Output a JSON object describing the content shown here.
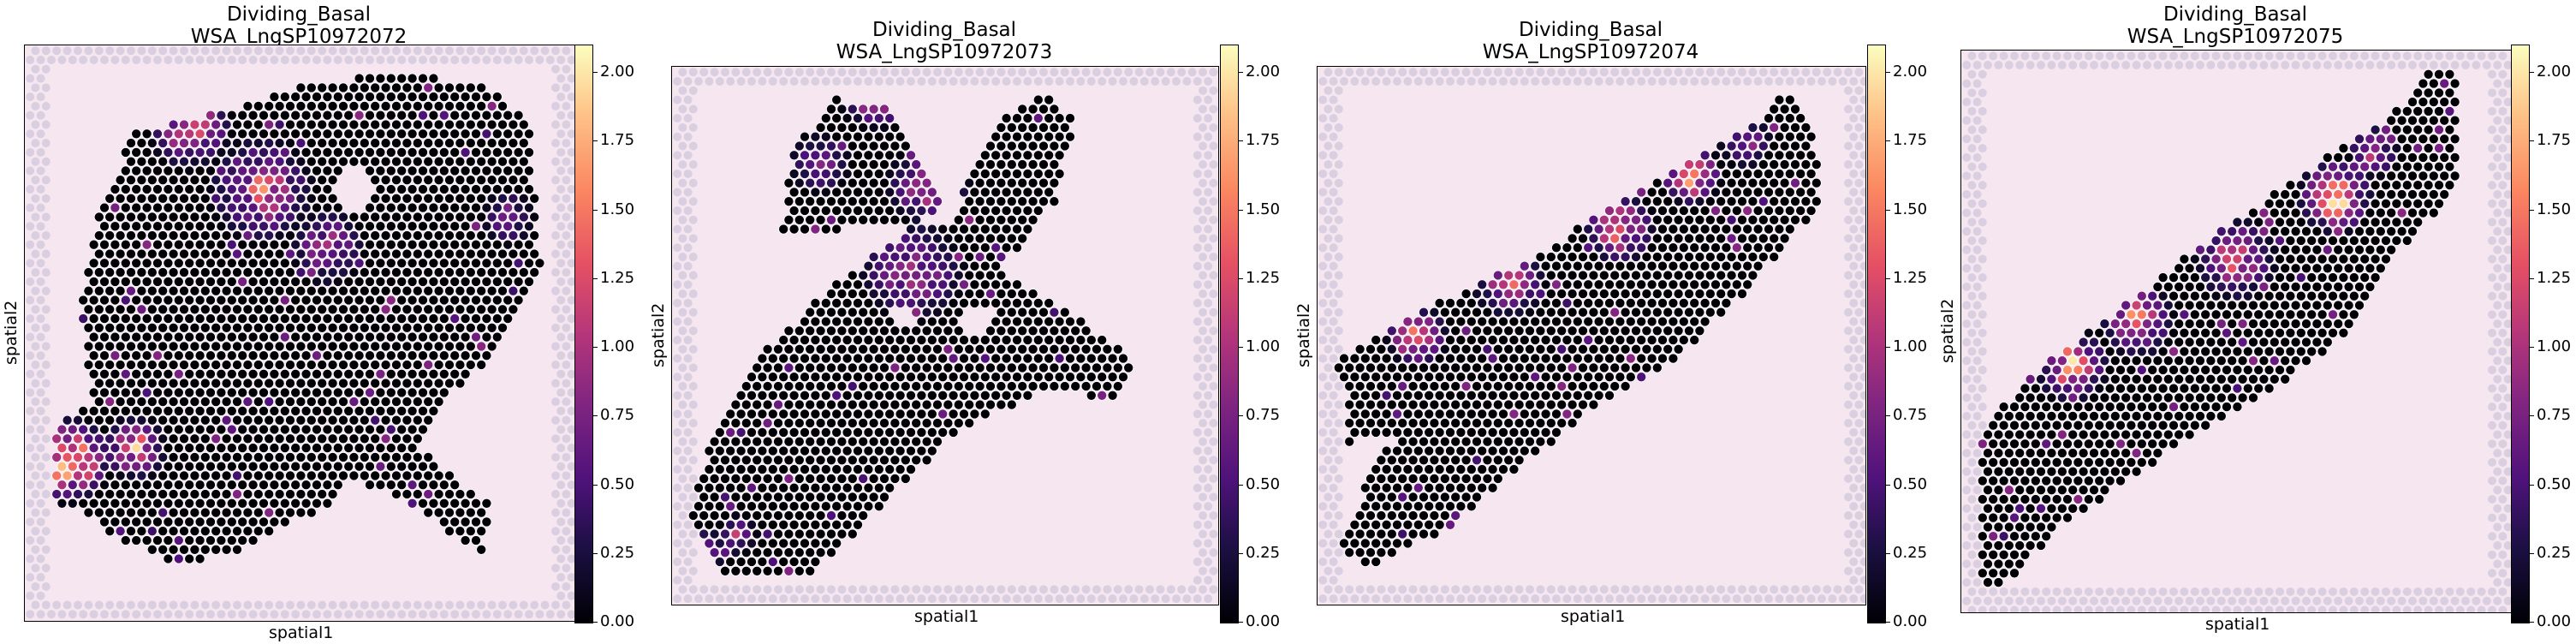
{
  "chart_data": [
    {
      "type": "scatter",
      "title": "Dividing_Basal",
      "subtitle": "WSA_LngSP10972072",
      "xlabel": "spatial1",
      "ylabel": "spatial2",
      "colorbar": {
        "colormap": "magma",
        "min": 0.0,
        "max": 2.1,
        "ticks": [
          "0.00",
          "0.25",
          "0.50",
          "0.75",
          "1.00",
          "1.25",
          "1.50",
          "1.75",
          "2.00"
        ]
      }
    },
    {
      "type": "scatter",
      "title": "Dividing_Basal",
      "subtitle": "WSA_LngSP10972073",
      "xlabel": "spatial1",
      "ylabel": "spatial2",
      "colorbar": {
        "colormap": "magma",
        "min": 0.0,
        "max": 2.1,
        "ticks": [
          "0.00",
          "0.25",
          "0.50",
          "0.75",
          "1.00",
          "1.25",
          "1.50",
          "1.75",
          "2.00"
        ]
      }
    },
    {
      "type": "scatter",
      "title": "Dividing_Basal",
      "subtitle": "WSA_LngSP10972074",
      "xlabel": "spatial1",
      "ylabel": "spatial2",
      "colorbar": {
        "colormap": "magma",
        "min": 0.0,
        "max": 2.1,
        "ticks": [
          "0.00",
          "0.25",
          "0.50",
          "0.75",
          "1.00",
          "1.25",
          "1.50",
          "1.75",
          "2.00"
        ]
      }
    },
    {
      "type": "scatter",
      "title": "Dividing_Basal",
      "subtitle": "WSA_LngSP10972075",
      "xlabel": "spatial1",
      "ylabel": "spatial2",
      "colorbar": {
        "colormap": "magma",
        "min": 0.0,
        "max": 2.1,
        "ticks": [
          "0.00",
          "0.25",
          "0.50",
          "0.75",
          "1.00",
          "1.25",
          "1.50",
          "1.75",
          "2.00"
        ]
      }
    }
  ]
}
